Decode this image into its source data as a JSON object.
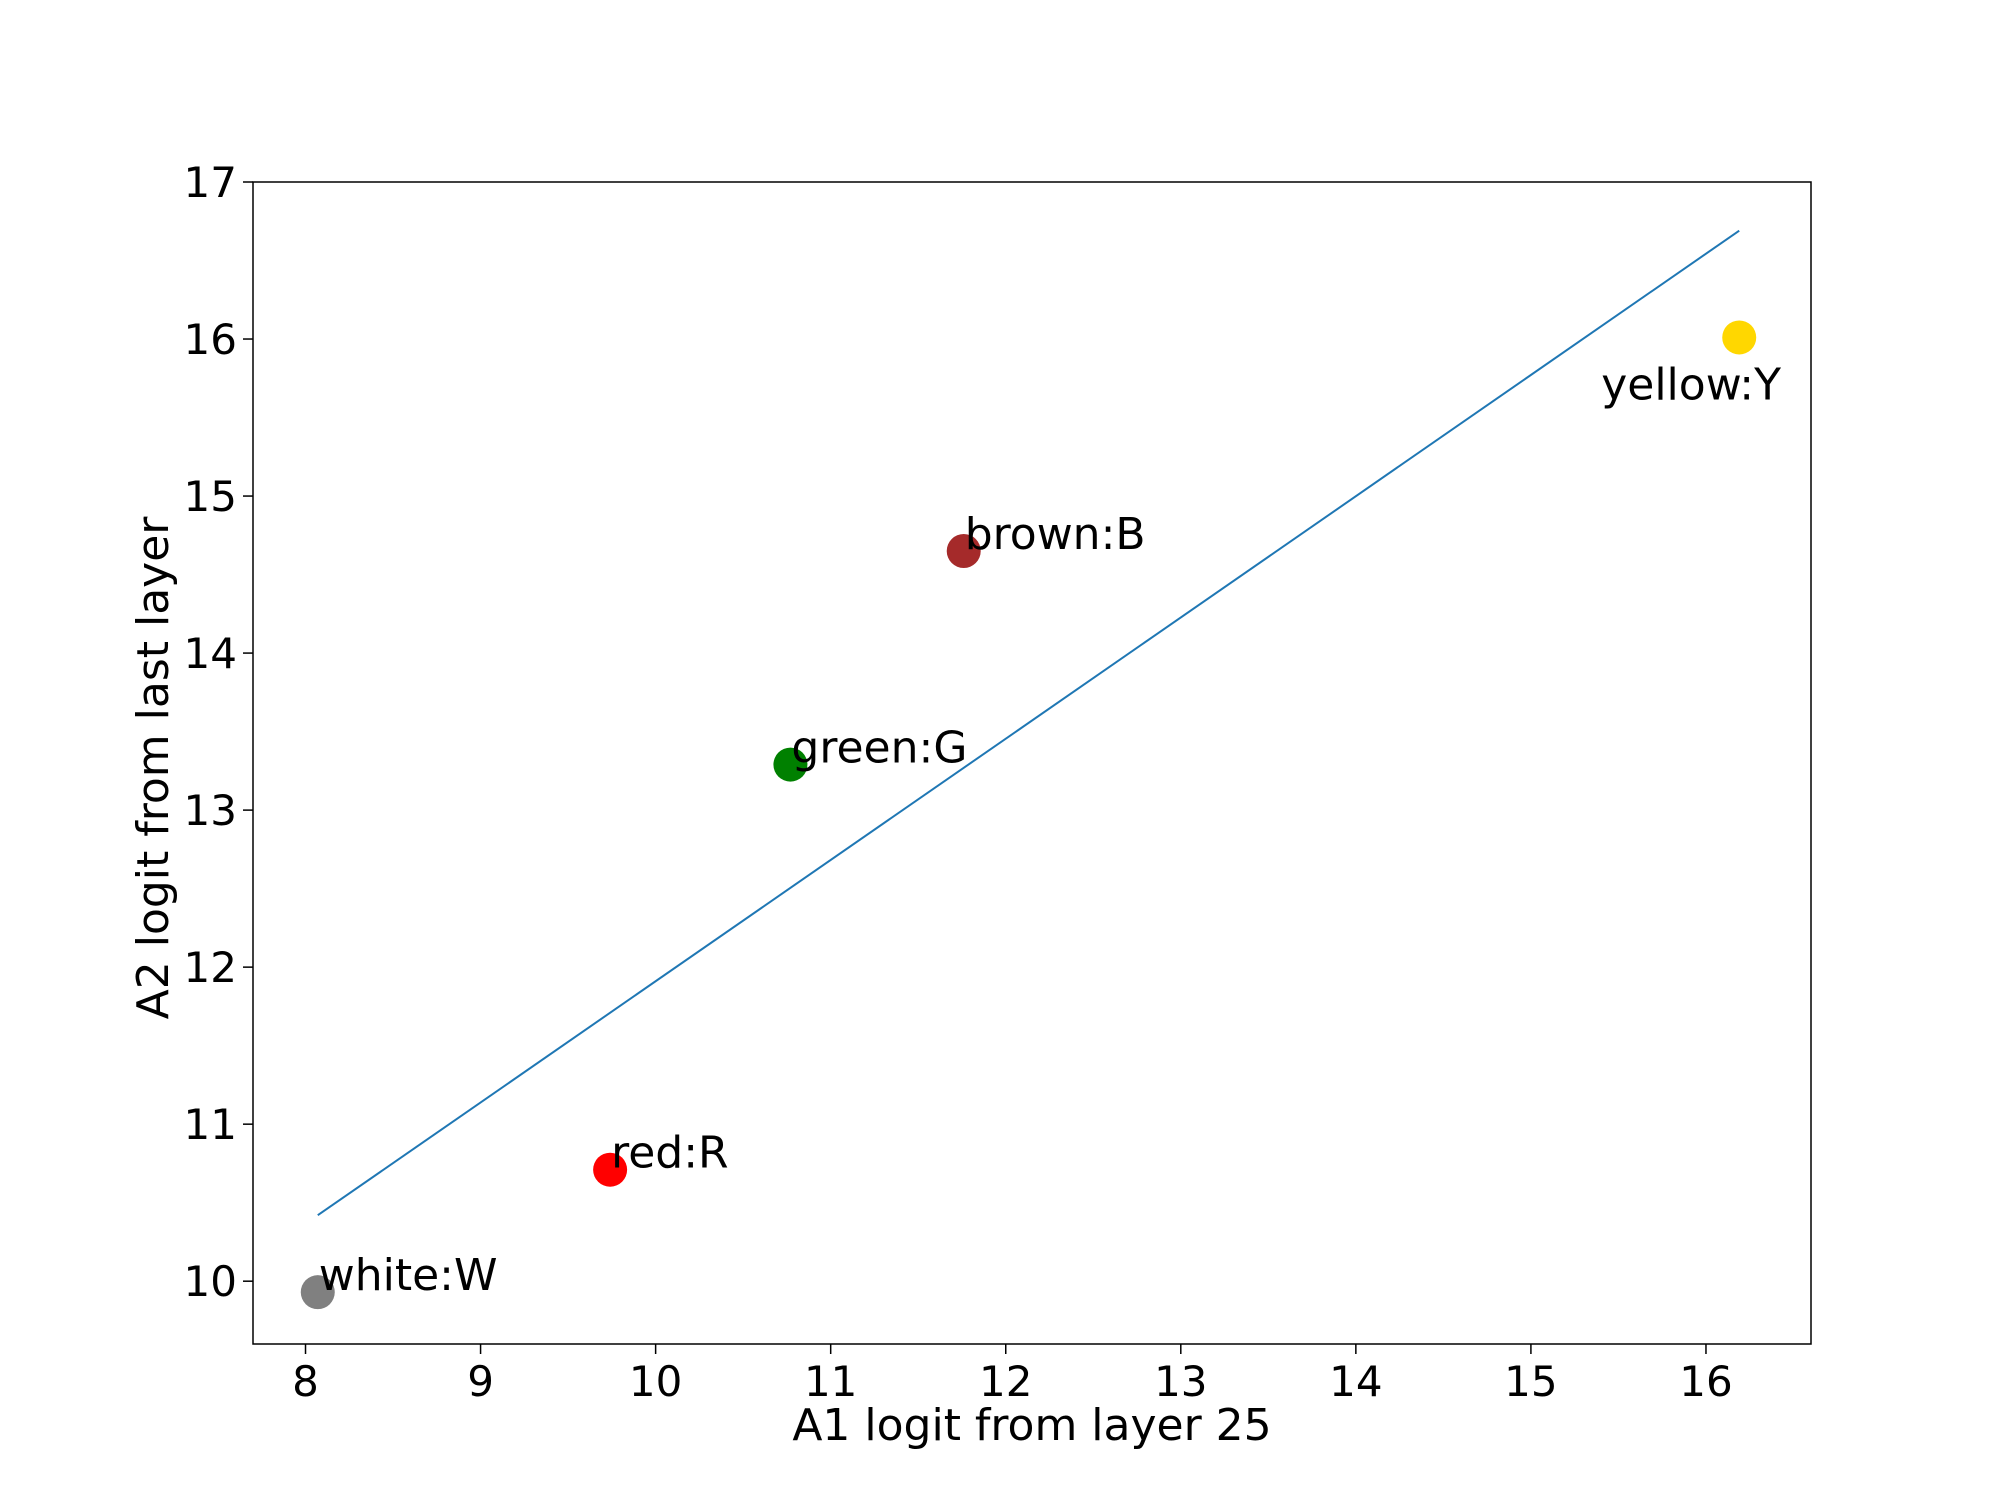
{
  "chart_data": {
    "type": "scatter",
    "title": "",
    "xlabel": "A1 logit from layer 25",
    "ylabel": "A2 logit from last layer",
    "xlim": [
      7.7,
      16.6
    ],
    "ylim": [
      9.6,
      17.0
    ],
    "xticks": [
      8,
      9,
      10,
      11,
      12,
      13,
      14,
      15,
      16
    ],
    "yticks": [
      10,
      11,
      12,
      13,
      14,
      15,
      16,
      17
    ],
    "grid": false,
    "points": [
      {
        "label": "white:W",
        "x": 8.07,
        "y": 9.93,
        "color": "#808080",
        "label_pos": "above-right"
      },
      {
        "label": "red:R",
        "x": 9.74,
        "y": 10.71,
        "color": "#ff0000",
        "label_pos": "above-right"
      },
      {
        "label": "green:G",
        "x": 10.77,
        "y": 13.29,
        "color": "#008000",
        "label_pos": "above-right"
      },
      {
        "label": "brown:B",
        "x": 11.76,
        "y": 14.65,
        "color": "#a52a2a",
        "label_pos": "above-right"
      },
      {
        "label": "yellow:Y",
        "x": 16.19,
        "y": 16.01,
        "color": "#ffd700",
        "label_pos": "below"
      }
    ],
    "fit_line": {
      "x": [
        8.07,
        16.19
      ],
      "y": [
        10.42,
        16.69
      ],
      "color": "#1f77b4"
    }
  }
}
